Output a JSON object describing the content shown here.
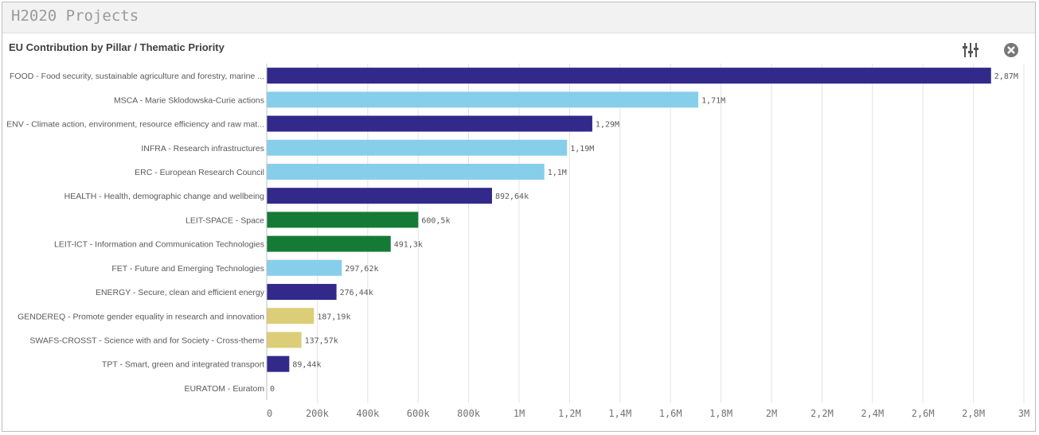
{
  "sheet": {
    "title": "H2020 Projects"
  },
  "toolbar": {
    "settings_icon": "sliders-icon",
    "close_icon": "close-circle-icon"
  },
  "colors": {
    "navy": "#33298a",
    "light_blue": "#87ceeb",
    "green": "#167a37",
    "khaki": "#dccd78"
  },
  "chart_data": {
    "type": "bar",
    "orientation": "horizontal",
    "title": "EU Contribution by Pillar / Thematic Priority",
    "categories": [
      "FOOD - Food security, sustainable agriculture and forestry, marine ...",
      "MSCA - Marie Sklodowska-Curie actions",
      "ENV - Climate action, environment, resource efficiency and raw mat...",
      "INFRA - Research infrastructures",
      "ERC - European Research Council",
      "HEALTH - Health, demographic change and wellbeing",
      "LEIT-SPACE - Space",
      "LEIT-ICT - Information and Communication Technologies",
      "FET - Future and Emerging Technologies",
      "ENERGY - Secure, clean and efficient energy",
      "GENDEREQ - Promote gender equality in research and innovation",
      "SWAFS-CROSST - Science with and for Society - Cross-theme",
      "TPT - Smart, green and integrated transport",
      "EURATOM - Euratom"
    ],
    "values": [
      2870000,
      1710000,
      1290000,
      1190000,
      1100000,
      892640,
      600500,
      491300,
      297620,
      276440,
      187190,
      137570,
      89440,
      0
    ],
    "value_labels": [
      "2,87M",
      "1,71M",
      "1,29M",
      "1,19M",
      "1,1M",
      "892,64k",
      "600,5k",
      "491,3k",
      "297,62k",
      "276,44k",
      "187,19k",
      "137,57k",
      "89,44k",
      "0"
    ],
    "bar_colors": [
      "#33298a",
      "#87ceeb",
      "#33298a",
      "#87ceeb",
      "#87ceeb",
      "#33298a",
      "#167a37",
      "#167a37",
      "#87ceeb",
      "#33298a",
      "#dccd78",
      "#dccd78",
      "#33298a",
      "#33298a"
    ],
    "xlim": [
      0,
      3000000
    ],
    "x_ticks": [
      0,
      200000,
      400000,
      600000,
      800000,
      1000000,
      1200000,
      1400000,
      1600000,
      1800000,
      2000000,
      2200000,
      2400000,
      2600000,
      2800000,
      3000000
    ],
    "x_tick_labels": [
      "0",
      "200k",
      "400k",
      "600k",
      "800k",
      "1M",
      "1,2M",
      "1,4M",
      "1,6M",
      "1,8M",
      "2M",
      "2,2M",
      "2,4M",
      "2,6M",
      "2,8M",
      "3M"
    ],
    "grid": true,
    "legend": false
  }
}
